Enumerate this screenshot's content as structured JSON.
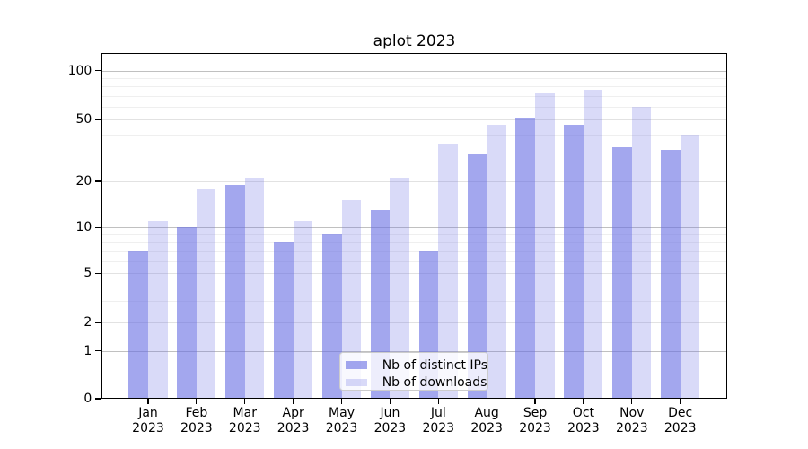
{
  "chart_data": {
    "type": "bar",
    "title": "aplot 2023",
    "categories": [
      "Jan 2023",
      "Feb 2023",
      "Mar 2023",
      "Apr 2023",
      "May 2023",
      "Jun 2023",
      "Jul 2023",
      "Aug 2023",
      "Sep 2023",
      "Oct 2023",
      "Nov 2023",
      "Dec 2023"
    ],
    "series": [
      {
        "name": "Nb of distinct IPs",
        "color": "rgba(102,108,227,0.60)",
        "color_flat": "#a3a7ee",
        "values": [
          7,
          10,
          19,
          8,
          9,
          13,
          7,
          30,
          51,
          46,
          33,
          32
        ]
      },
      {
        "name": "Nb of downloads",
        "color": "rgba(102,108,227,0.25)",
        "color_flat": "#d9daf8",
        "values": [
          11,
          18,
          21,
          11,
          15,
          21,
          35,
          46,
          72,
          76,
          60,
          40
        ]
      }
    ],
    "y_ticks": [
      0,
      1,
      2,
      5,
      10,
      20,
      50,
      100
    ],
    "y_scale": "symlog",
    "ylim": [
      0,
      126
    ],
    "xlabel": "",
    "ylabel": "",
    "grid": "both",
    "legend_position": "lower-center",
    "accent_base_color": "#666CE3",
    "gridline_decade_color": "#c0c0c0",
    "gridline_minor_color": "#efefef"
  }
}
